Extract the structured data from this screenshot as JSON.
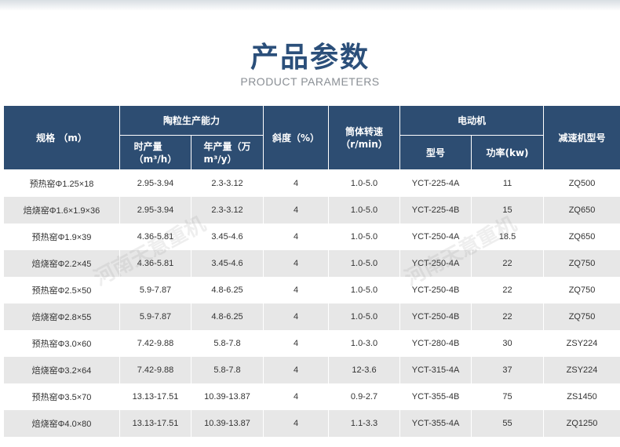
{
  "header": {
    "title": "产品参数",
    "subtitle": "PRODUCT PARAMETERS"
  },
  "table": {
    "col_spec": "规格 （m）",
    "col_capacity": "陶粒生产能力",
    "col_slope": "斜度（%）",
    "col_speed": "筒体转速\n（r/min）",
    "col_motor": "电动机",
    "col_reducer": "减速机型号",
    "sub_hourly": "时产量\n（m³/h）",
    "sub_annual": "年产量（万\nm³/y）",
    "sub_model": "型号",
    "sub_power": "功率(kw)",
    "rows": [
      {
        "spec": "预热窑Φ1.25×18",
        "hourly": "2.95-3.94",
        "annual": "2.3-3.12",
        "slope": "4",
        "speed": "1.0-5.0",
        "motor": "YCT-225-4A",
        "power": "11",
        "reducer": "ZQ500"
      },
      {
        "spec": "焙烧窑Φ1.6×1.9×36",
        "hourly": "2.95-3.94",
        "annual": "2.3-3.12",
        "slope": "4",
        "speed": "1.0-5.0",
        "motor": "YCT-225-4B",
        "power": "15",
        "reducer": "ZQ650"
      },
      {
        "spec": "预热窑Φ1.9×39",
        "hourly": "4.36-5.81",
        "annual": "3.45-4.6",
        "slope": "4",
        "speed": "1.0-5.0",
        "motor": "YCT-250-4A",
        "power": "18.5",
        "reducer": "ZQ650"
      },
      {
        "spec": "焙烧窑Φ2.2×45",
        "hourly": "4.36-5.81",
        "annual": "3.45-4.6",
        "slope": "4",
        "speed": "1.0-5.0",
        "motor": "YCT-250-4A",
        "power": "22",
        "reducer": "ZQ750"
      },
      {
        "spec": "预热窑Φ2.5×50",
        "hourly": "5.9-7.87",
        "annual": "4.8-6.25",
        "slope": "4",
        "speed": "1.0-5.0",
        "motor": "YCT-250-4B",
        "power": "22",
        "reducer": "ZQ750"
      },
      {
        "spec": "焙烧窑Φ2.8×55",
        "hourly": "5.9-7.87",
        "annual": "4.8-6.25",
        "slope": "4",
        "speed": "1.0-5.0",
        "motor": "YCT-250-4B",
        "power": "22",
        "reducer": "ZQ750"
      },
      {
        "spec": "预热窑Φ3.0×60",
        "hourly": "7.42-9.88",
        "annual": "5.8-7.8",
        "slope": "4",
        "speed": "1.0-3.0",
        "motor": "YCT-280-4B",
        "power": "30",
        "reducer": "ZSY224"
      },
      {
        "spec": "焙烧窑Φ3.2×64",
        "hourly": "7.42-9.88",
        "annual": "5.8-7.8",
        "slope": "4",
        "speed": "12-3.6",
        "motor": "YCT-315-4A",
        "power": "37",
        "reducer": "ZSY224"
      },
      {
        "spec": "预热窑Φ3.5×70",
        "hourly": "13.13-17.51",
        "annual": "10.39-13.87",
        "slope": "4",
        "speed": "0.9-2.7",
        "motor": "YCT-355-4B",
        "power": "75",
        "reducer": "ZS1450"
      },
      {
        "spec": "焙烧窑Φ4.0×80",
        "hourly": "13.13-17.51",
        "annual": "10.39-13.87",
        "slope": "4",
        "speed": "1.1-3.3",
        "motor": "YCT-355-4A",
        "power": "55",
        "reducer": "ZQ1250"
      }
    ]
  },
  "watermark": {
    "text": "河南天意重机"
  },
  "colors": {
    "header_bg": "#2d4d72",
    "title": "#2b4f7a",
    "row_alt": "#e7e7e7"
  }
}
